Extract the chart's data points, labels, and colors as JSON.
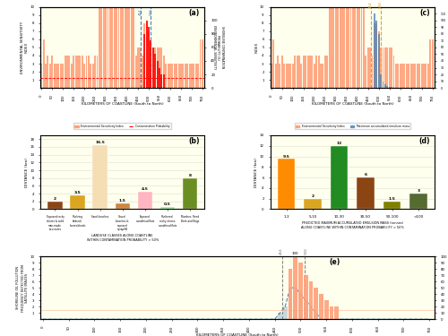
{
  "bg_color": "#ffffee",
  "outer_bg": "#ffffff",
  "coastline_km": [
    0,
    10,
    20,
    30,
    40,
    50,
    60,
    70,
    80,
    90,
    100,
    110,
    120,
    130,
    140,
    150,
    160,
    170,
    180,
    190,
    200,
    210,
    220,
    230,
    240,
    250,
    260,
    270,
    280,
    290,
    300,
    310,
    320,
    330,
    340,
    350,
    360,
    370,
    380,
    390,
    400,
    410,
    420,
    430,
    440,
    450,
    460,
    470,
    480,
    490,
    500,
    510,
    520,
    530,
    540,
    550,
    560,
    570,
    580,
    590,
    600,
    610,
    620,
    630,
    640,
    650,
    660,
    670,
    680,
    690,
    700,
    710,
    720,
    730,
    740,
    750
  ],
  "esi_values": [
    3,
    6,
    3,
    4,
    3,
    4,
    3,
    3,
    3,
    3,
    3,
    4,
    4,
    4,
    3,
    4,
    4,
    4,
    4,
    4,
    3,
    4,
    4,
    3,
    3,
    4,
    4,
    10,
    10,
    10,
    10,
    10,
    10,
    10,
    10,
    10,
    10,
    10,
    10,
    10,
    10,
    10,
    10,
    10,
    4,
    5,
    5,
    4,
    8,
    8,
    7,
    5,
    5,
    5,
    5,
    5,
    5,
    4,
    3,
    3,
    3,
    3,
    3,
    3,
    3,
    3,
    3,
    3,
    3,
    3,
    3,
    3,
    3,
    3,
    6,
    6
  ],
  "contam_prob_a": [
    0,
    0,
    0,
    0,
    0,
    0,
    0,
    0,
    0,
    0,
    0,
    0,
    0,
    0,
    0,
    0,
    0,
    0,
    0,
    0,
    0,
    0,
    0,
    0,
    0,
    0,
    0,
    0,
    0,
    0,
    0,
    0,
    0,
    0,
    0,
    0,
    0,
    0,
    0,
    0,
    0,
    0,
    0,
    0,
    0,
    0,
    0,
    0,
    80,
    100,
    90,
    70,
    60,
    50,
    40,
    30,
    20,
    20,
    0,
    0,
    0,
    0,
    0,
    0,
    0,
    0,
    0,
    0,
    0,
    0,
    0,
    0,
    0,
    0,
    0,
    0
  ],
  "contam_prob_baseline": 15,
  "emulsion_values": [
    0,
    0,
    0,
    0,
    0,
    0,
    0,
    0,
    0,
    0,
    0,
    0,
    0,
    0,
    0,
    0,
    0,
    0,
    0,
    0,
    0,
    0,
    0,
    0,
    0,
    0,
    0,
    0,
    0,
    0,
    0,
    0,
    0,
    0,
    0,
    0,
    0,
    0,
    0,
    0,
    0,
    0,
    0,
    0,
    0,
    0,
    0,
    0,
    110,
    100,
    80,
    20,
    10,
    5,
    3,
    2,
    1,
    1,
    0,
    0,
    0,
    0,
    0,
    0,
    0,
    0,
    0,
    0,
    0,
    0,
    0,
    0,
    0,
    0,
    0,
    0
  ],
  "vline_464": 464,
  "vline_508": 508,
  "panel_b_categories": [
    "Exposed rocky\nshores & solid\nman-made\nstructures",
    "Shelving\nbedrock\nshores/shoals",
    "Sand beaches",
    "Gravel\nbeaches &\nexposed\nriprap/fill",
    "Exposed\nsand/mud flats",
    "Sheltered\nrocky shores,\nsand/mud flats",
    "Marshes, Reed\nBeds and Bogs"
  ],
  "panel_b_values": [
    2,
    3.5,
    16.5,
    1.5,
    4.5,
    0.5,
    8
  ],
  "panel_b_colors": [
    "#8B4513",
    "#DAA520",
    "#F5DEB3",
    "#CD853F",
    "#FFB6C1",
    "#90EE90",
    "#6B8E23"
  ],
  "panel_d_categories": [
    "1-3",
    "5-10",
    "10-30",
    "30-50",
    "50-100",
    ">100"
  ],
  "panel_d_values": [
    9.5,
    2,
    12,
    6,
    1.5,
    3
  ],
  "panel_d_colors": [
    "#FF8C00",
    "#DAA520",
    "#228B22",
    "#8B4513",
    "#808000",
    "#556B2F"
  ],
  "contam_prob_e": [
    0,
    0,
    0,
    0,
    0,
    0,
    0,
    0,
    0,
    0,
    0,
    0,
    0,
    0,
    0,
    0,
    0,
    0,
    0,
    0,
    0,
    0,
    0,
    0,
    0,
    0,
    0,
    0,
    0,
    0,
    0,
    0,
    0,
    0,
    0,
    0,
    0,
    0,
    0,
    0,
    0,
    0,
    0,
    0,
    0,
    0,
    0,
    0,
    80,
    100,
    90,
    70,
    60,
    50,
    40,
    30,
    20,
    20,
    0,
    0,
    0,
    0,
    0,
    0,
    0,
    0,
    0,
    0,
    0,
    0,
    0,
    0,
    0,
    0,
    0,
    0
  ],
  "contam_prob_e_baseline": 15,
  "pollution_freq": [
    0,
    0,
    0,
    0,
    0,
    0,
    0,
    0,
    0,
    0,
    0,
    0,
    0,
    0,
    0,
    0,
    0,
    0,
    0,
    0,
    0,
    0,
    0,
    0,
    0,
    0,
    0,
    0,
    0,
    0,
    0,
    0,
    0,
    0,
    0,
    0,
    0,
    0,
    0,
    0,
    0,
    0,
    0,
    0,
    0,
    0,
    1,
    2,
    5,
    5,
    4,
    3,
    2,
    1,
    0,
    0,
    0,
    0,
    0,
    0,
    0,
    0,
    0,
    0,
    0,
    0,
    0,
    0,
    0,
    0,
    0,
    0,
    0,
    0,
    0,
    0
  ]
}
